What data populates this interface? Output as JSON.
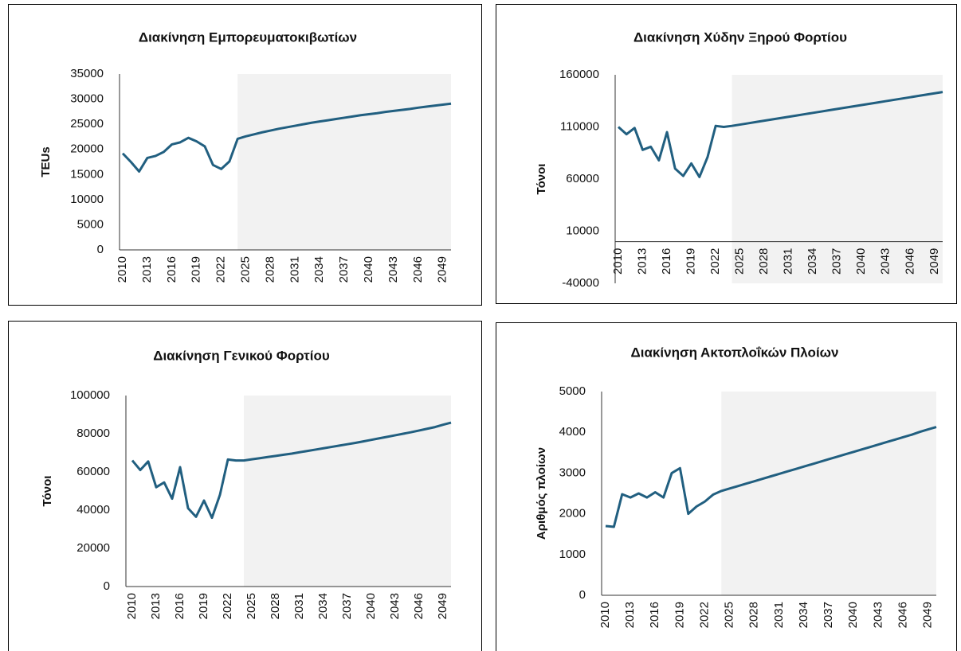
{
  "chart_data": [
    {
      "type": "line",
      "title": "Διακίνηση Εμπορευματοκιβωτίων",
      "ylabel": "TEUs",
      "color": "#215f80",
      "shade_color": "#f2f2f2",
      "forecast_region": [
        2024,
        2050
      ],
      "x": [
        2010,
        2011,
        2012,
        2013,
        2014,
        2015,
        2016,
        2017,
        2018,
        2019,
        2020,
        2021,
        2022,
        2023,
        2024,
        2025,
        2026,
        2027,
        2028,
        2029,
        2030,
        2031,
        2032,
        2033,
        2034,
        2035,
        2036,
        2037,
        2038,
        2039,
        2040,
        2041,
        2042,
        2043,
        2044,
        2045,
        2046,
        2047,
        2048,
        2049,
        2050
      ],
      "values": [
        19200,
        17500,
        15600,
        18300,
        18700,
        19500,
        21000,
        21400,
        22300,
        21600,
        20600,
        16900,
        16100,
        17600,
        22100,
        22600,
        23000,
        23400,
        23750,
        24100,
        24400,
        24700,
        25000,
        25300,
        25550,
        25800,
        26050,
        26300,
        26550,
        26800,
        27000,
        27200,
        27450,
        27650,
        27850,
        28050,
        28300,
        28500,
        28700,
        28900,
        29100
      ],
      "xlim": [
        2010,
        2050
      ],
      "xticks": [
        2010,
        2013,
        2016,
        2019,
        2022,
        2025,
        2028,
        2031,
        2034,
        2037,
        2040,
        2043,
        2046,
        2049
      ],
      "ylim": [
        0,
        35000
      ],
      "yticks": [
        0,
        5000,
        10000,
        15000,
        20000,
        25000,
        30000,
        35000
      ]
    },
    {
      "type": "line",
      "title": "Διακίνηση Χύδην Ξηρού Φορτίου",
      "ylabel": "Τόνοι",
      "color": "#215f80",
      "shade_color": "#f2f2f2",
      "forecast_region": [
        2024,
        2050
      ],
      "x": [
        2010,
        2011,
        2012,
        2013,
        2014,
        2015,
        2016,
        2017,
        2018,
        2019,
        2020,
        2021,
        2022,
        2023,
        2024,
        2025,
        2026,
        2027,
        2028,
        2029,
        2030,
        2031,
        2032,
        2033,
        2034,
        2035,
        2036,
        2037,
        2038,
        2039,
        2040,
        2041,
        2042,
        2043,
        2044,
        2045,
        2046,
        2047,
        2048,
        2049,
        2050
      ],
      "values": [
        110000,
        103000,
        109000,
        88000,
        91000,
        78000,
        105000,
        70000,
        63000,
        75000,
        62000,
        81000,
        111000,
        110000,
        111000,
        112250,
        113500,
        114750,
        116000,
        117250,
        118500,
        119750,
        121000,
        122250,
        123500,
        124750,
        126000,
        127250,
        128500,
        129750,
        131000,
        132250,
        133500,
        134750,
        136000,
        137250,
        138500,
        139750,
        141000,
        142250,
        143500
      ],
      "xlim": [
        2010,
        2050
      ],
      "xticks": [
        2010,
        2013,
        2016,
        2019,
        2022,
        2025,
        2028,
        2031,
        2034,
        2037,
        2040,
        2043,
        2046,
        2049
      ],
      "ylim": [
        -40000,
        160000
      ],
      "yticks": [
        -40000,
        10000,
        60000,
        110000,
        160000
      ]
    },
    {
      "type": "line",
      "title": "Διακίνηση Γενικού Φορτίου",
      "ylabel": "Τόνοι",
      "color": "#215f80",
      "shade_color": "#f2f2f2",
      "forecast_region": [
        2024,
        2050
      ],
      "x": [
        2010,
        2011,
        2012,
        2013,
        2014,
        2015,
        2016,
        2017,
        2018,
        2019,
        2020,
        2021,
        2022,
        2023,
        2024,
        2025,
        2026,
        2027,
        2028,
        2029,
        2030,
        2031,
        2032,
        2033,
        2034,
        2035,
        2036,
        2037,
        2038,
        2039,
        2040,
        2041,
        2042,
        2043,
        2044,
        2045,
        2046,
        2047,
        2048,
        2049,
        2050
      ],
      "values": [
        66000,
        61000,
        65500,
        52000,
        54500,
        46000,
        62500,
        41000,
        36500,
        45000,
        36000,
        48000,
        66500,
        66000,
        66000,
        66600,
        67200,
        67800,
        68400,
        69000,
        69600,
        70300,
        71000,
        71700,
        72400,
        73100,
        73800,
        74500,
        75200,
        76000,
        76800,
        77600,
        78400,
        79200,
        80000,
        80800,
        81700,
        82600,
        83500,
        84700,
        85800
      ],
      "xlim": [
        2010,
        2050
      ],
      "xticks": [
        2010,
        2013,
        2016,
        2019,
        2022,
        2025,
        2028,
        2031,
        2034,
        2037,
        2040,
        2043,
        2046,
        2049
      ],
      "ylim": [
        0,
        100000
      ],
      "yticks": [
        0,
        20000,
        40000,
        60000,
        80000,
        100000
      ]
    },
    {
      "type": "line",
      "title": "Διακίνηση Ακτοπλοΐκών Πλοίων",
      "ylabel": "Αριθμός πλοίων",
      "color": "#215f80",
      "shade_color": "#f2f2f2",
      "forecast_region": [
        2024,
        2050
      ],
      "x": [
        2010,
        2011,
        2012,
        2013,
        2014,
        2015,
        2016,
        2017,
        2018,
        2019,
        2020,
        2021,
        2022,
        2023,
        2024,
        2025,
        2026,
        2027,
        2028,
        2029,
        2030,
        2031,
        2032,
        2033,
        2034,
        2035,
        2036,
        2037,
        2038,
        2039,
        2040,
        2041,
        2042,
        2043,
        2044,
        2045,
        2046,
        2047,
        2048,
        2049,
        2050
      ],
      "values": [
        1700,
        1680,
        2480,
        2400,
        2500,
        2400,
        2530,
        2400,
        3000,
        3120,
        2000,
        2180,
        2300,
        2470,
        2560,
        2620,
        2680,
        2740,
        2800,
        2860,
        2920,
        2980,
        3040,
        3100,
        3160,
        3220,
        3280,
        3340,
        3400,
        3460,
        3520,
        3580,
        3640,
        3700,
        3760,
        3820,
        3880,
        3940,
        4010,
        4070,
        4130
      ],
      "xlim": [
        2010,
        2050
      ],
      "xticks": [
        2010,
        2013,
        2016,
        2019,
        2022,
        2025,
        2028,
        2031,
        2034,
        2037,
        2040,
        2043,
        2046,
        2049
      ],
      "ylim": [
        0,
        5000
      ],
      "yticks": [
        0,
        1000,
        2000,
        3000,
        4000,
        5000
      ]
    }
  ]
}
